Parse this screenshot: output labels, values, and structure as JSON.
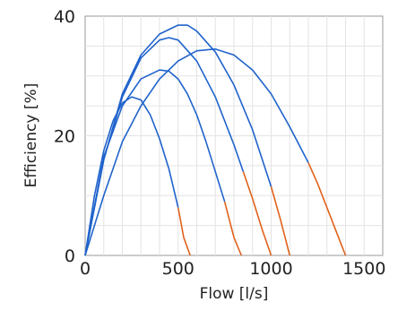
{
  "chart_data": {
    "type": "line",
    "title": "",
    "xlabel": "Flow [l/s]",
    "ylabel": "Efficiency [%]",
    "xlim": [
      0,
      1600
    ],
    "ylim": [
      0,
      40
    ],
    "x_ticks": [
      "0",
      "500",
      "1000",
      "1500"
    ],
    "x_tick_values": [
      0,
      500,
      1000,
      1500
    ],
    "y_ticks": [
      "0",
      "20",
      "40"
    ],
    "y_tick_values": [
      0,
      20,
      40
    ],
    "grid": true,
    "colors": {
      "main": "#1f63cc",
      "tail": "#e0621b"
    },
    "series": [
      {
        "x": [
          0,
          50,
          100,
          150,
          200,
          250,
          300,
          350,
          400,
          450,
          500,
          530,
          565
        ],
        "y": [
          0,
          10,
          17.5,
          22.5,
          25.5,
          26.5,
          26,
          23.5,
          19.5,
          14.5,
          8,
          3,
          0
        ],
        "tail_from_index": 10
      },
      {
        "x": [
          0,
          100,
          200,
          300,
          400,
          450,
          500,
          550,
          600,
          650,
          700,
          750,
          800,
          840
        ],
        "y": [
          0,
          16.5,
          25,
          29.5,
          31,
          30.8,
          29.5,
          27,
          23.5,
          19,
          14,
          9,
          3,
          0
        ],
        "tail_from_index": 11
      },
      {
        "x": [
          0,
          100,
          200,
          300,
          400,
          450,
          500,
          600,
          700,
          800,
          850,
          900,
          950,
          1000
        ],
        "y": [
          0,
          16,
          26.5,
          33,
          36,
          36.4,
          36,
          32.5,
          26.5,
          18.5,
          14,
          9.5,
          4.5,
          0
        ],
        "tail_from_index": 10
      },
      {
        "x": [
          0,
          100,
          200,
          300,
          400,
          500,
          550,
          600,
          700,
          800,
          900,
          1000,
          1050,
          1100
        ],
        "y": [
          0,
          16,
          27,
          33.5,
          37,
          38.5,
          38.5,
          37.5,
          34,
          28.5,
          21,
          11.5,
          6,
          0
        ],
        "tail_from_index": 11
      },
      {
        "x": [
          0,
          100,
          200,
          300,
          400,
          500,
          600,
          700,
          800,
          900,
          1000,
          1100,
          1200,
          1250,
          1300,
          1350,
          1400
        ],
        "y": [
          0,
          10,
          19,
          25,
          29.5,
          32.5,
          34.2,
          34.5,
          33.5,
          31,
          27,
          21.5,
          15.5,
          12,
          8,
          4,
          0
        ],
        "tail_from_index": 12
      }
    ]
  }
}
